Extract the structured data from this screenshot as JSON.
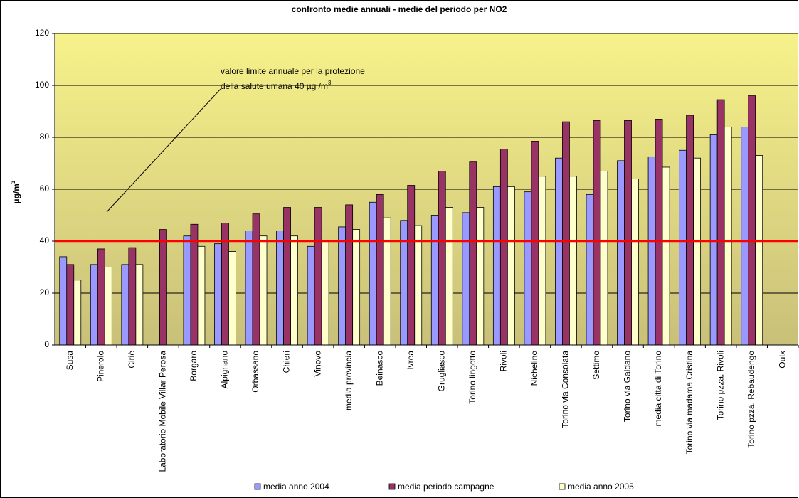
{
  "chart_data": {
    "type": "bar",
    "title": "confronto medie annuali - medie del periodo per NO2",
    "ylabel": "µg/m",
    "ylabel_sup": "3",
    "annotation": {
      "lines": [
        "valore limite annuale per la protezione",
        "della salute umana 40 µg /m"
      ],
      "sup": "3"
    },
    "limit_line": {
      "value": 40,
      "color": "#ff0000"
    },
    "categories": [
      "Susa",
      "Pinerolo",
      "Ciriè",
      "Laboratorio Mobile Villar Perosa",
      "Borgaro",
      "Alpignano",
      "Orbassano",
      "Chieri",
      "Vinovo",
      "media provincia",
      "Beinasco",
      "Ivrea",
      "Grugliasco",
      "Torino lingotto",
      "Rivoli",
      "Nichelino",
      "Torino via Consolata",
      "Settimo",
      "Torino via Gaidano",
      "media citta di Torino",
      "Torino via madama Cristina",
      "Torino pzza. Rivoli",
      "Torino pzza. Rebaudengo",
      "Oulx"
    ],
    "series": [
      {
        "name": "media anno 2004",
        "color": "#9999ff",
        "values": [
          34,
          31,
          31,
          null,
          42,
          39,
          44,
          44,
          38,
          45.5,
          55,
          48,
          50,
          51,
          61,
          59,
          72,
          58,
          71,
          72.5,
          75,
          81,
          84,
          null
        ]
      },
      {
        "name": "media periodo campagne",
        "color": "#993366",
        "values": [
          31,
          37,
          37.5,
          44.5,
          46.5,
          47,
          50.5,
          53,
          53,
          54,
          58,
          61.5,
          67,
          70.5,
          75.5,
          78.5,
          86,
          86.5,
          86.5,
          87,
          88.5,
          94.5,
          96,
          null
        ]
      },
      {
        "name": "media anno 2005",
        "color": "#ffffcc",
        "values": [
          25,
          30,
          31,
          null,
          38,
          36,
          42,
          42,
          40,
          44.5,
          49,
          46,
          53,
          53,
          61,
          65,
          65,
          67,
          64,
          68.5,
          72,
          84,
          73,
          null
        ]
      }
    ],
    "ylim": [
      0,
      120
    ],
    "yticks": [
      0,
      20,
      40,
      60,
      80,
      100,
      120
    ],
    "grid": true
  }
}
